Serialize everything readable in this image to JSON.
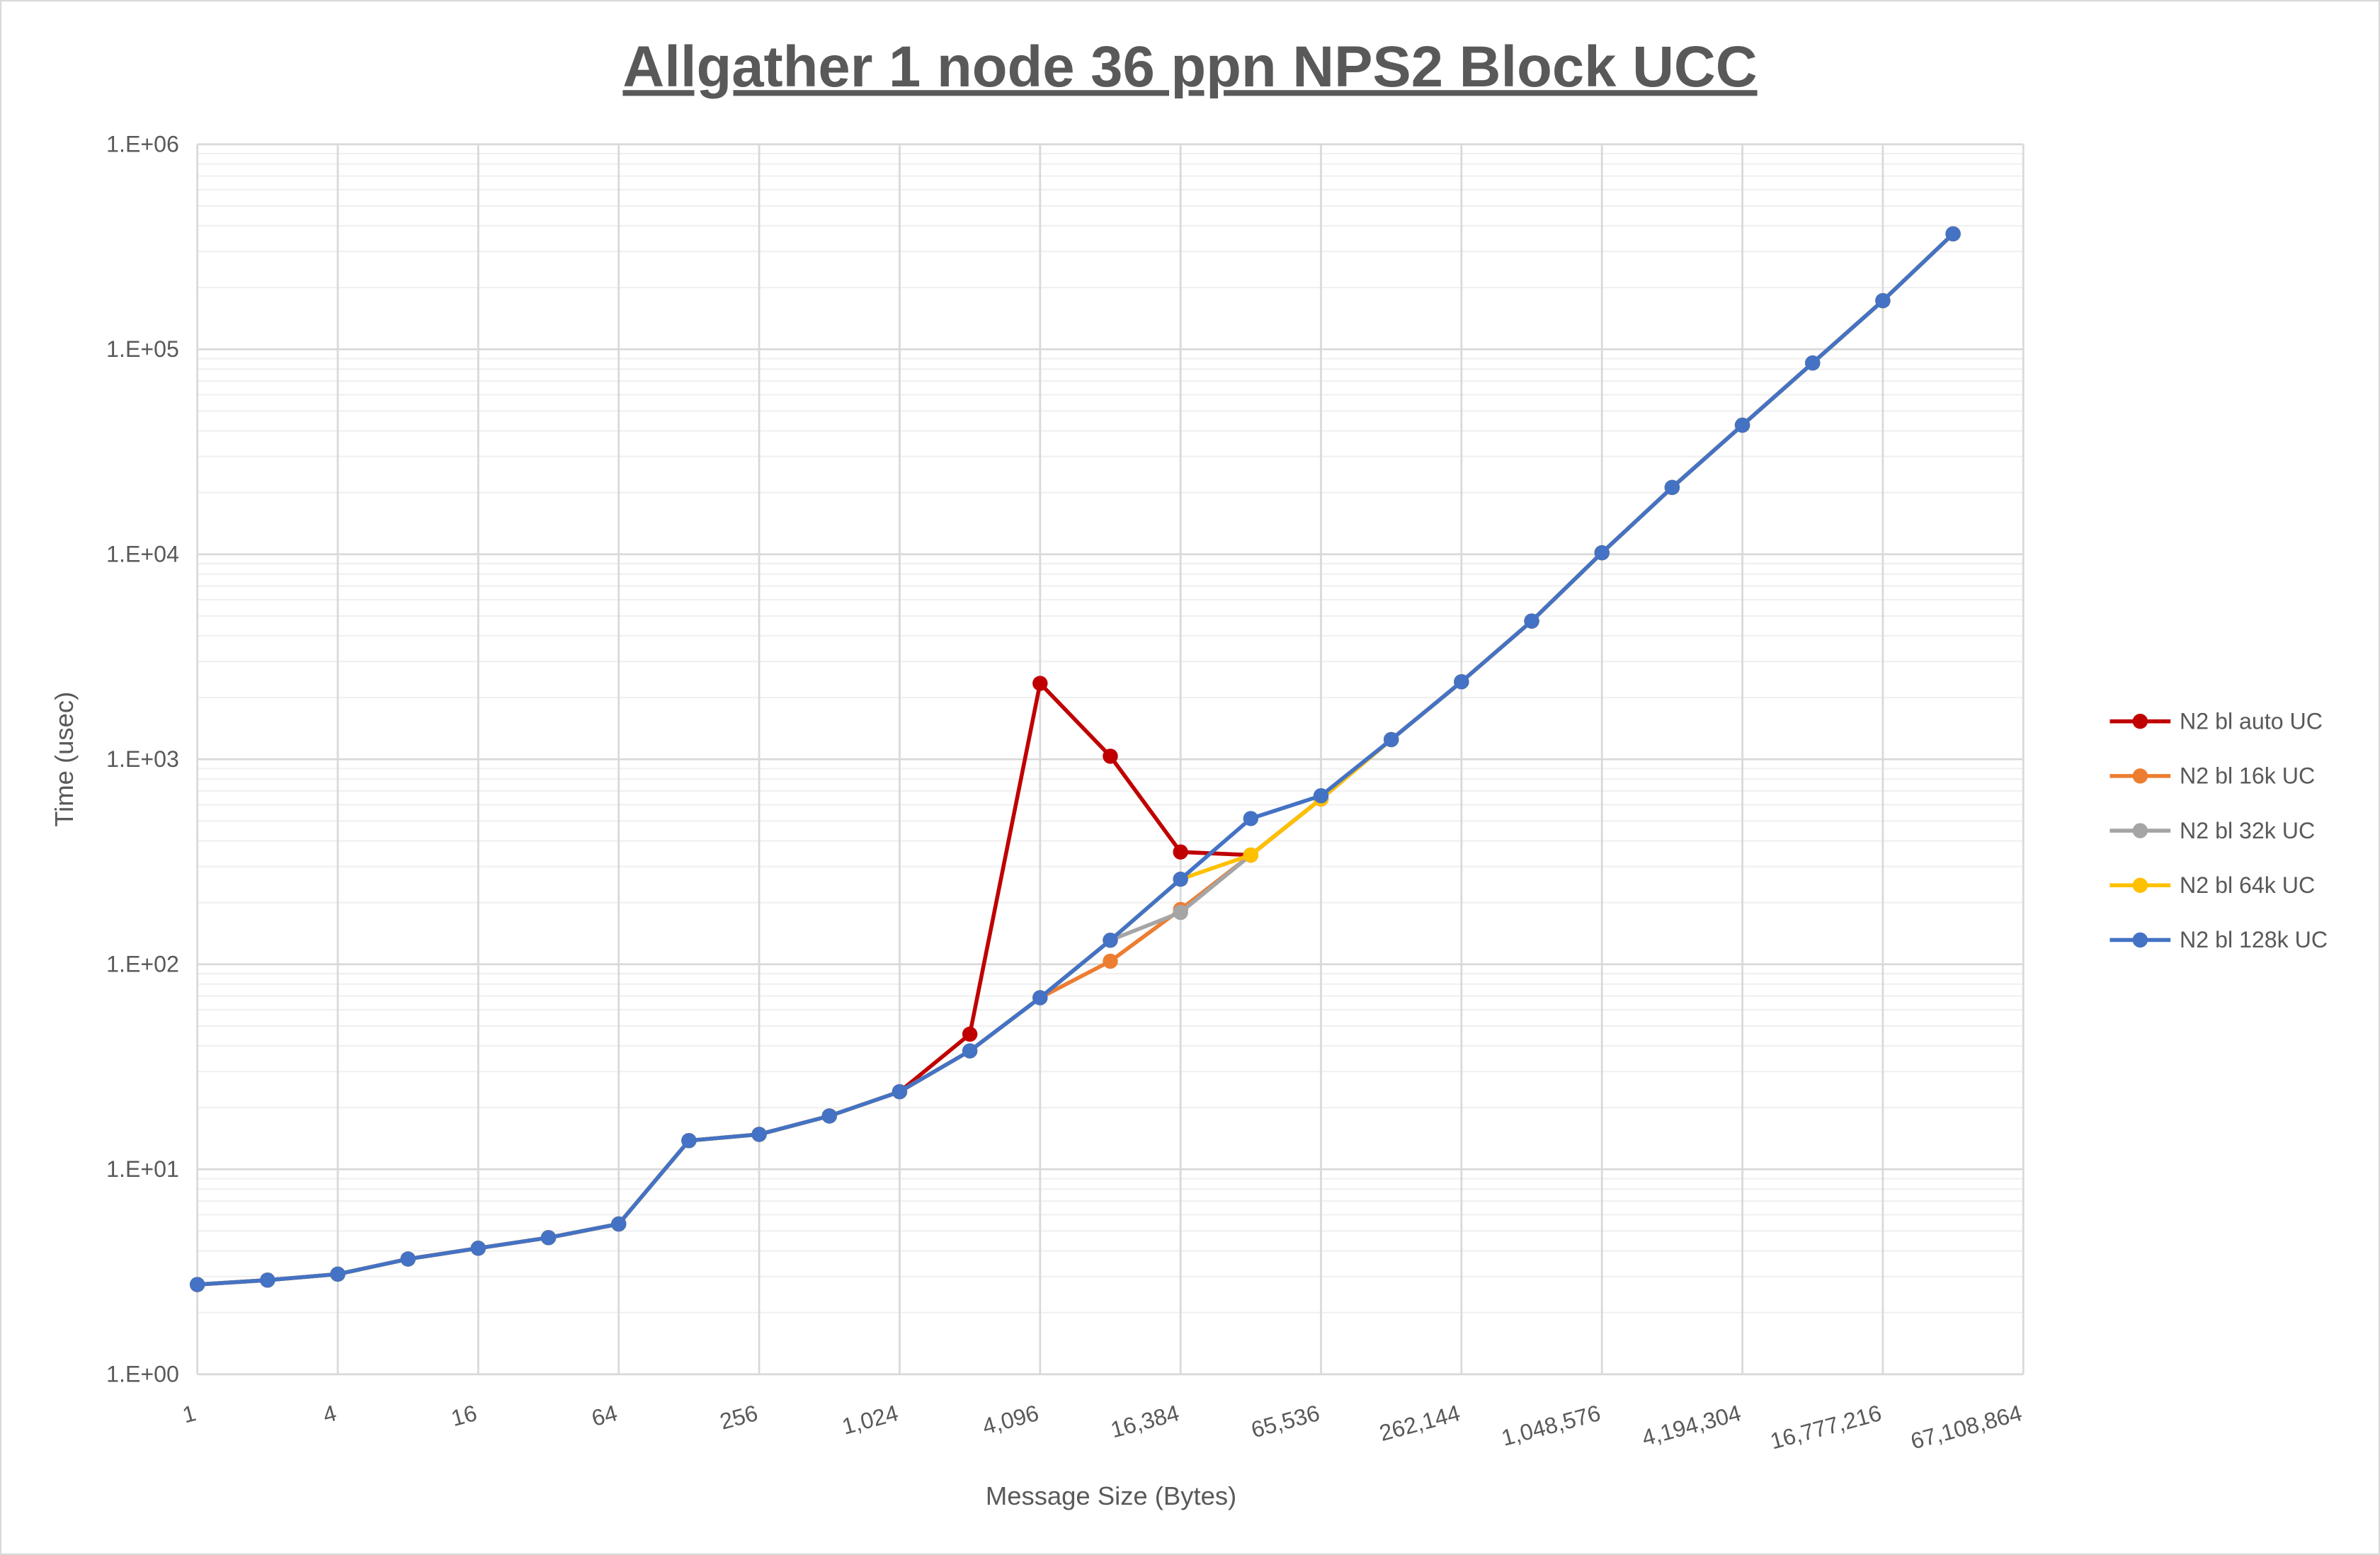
{
  "chart_data": {
    "type": "line",
    "title": "Allgather 1 node 36 ppn NPS2 Block UCC",
    "xlabel": "Message Size (Bytes)",
    "ylabel": "Time (usec)",
    "x_scale": "log2",
    "y_scale": "log10",
    "ylim": [
      1,
      1000000
    ],
    "grid": true,
    "legend": "right",
    "x_tick_labels": [
      "1",
      "4",
      "16",
      "64",
      "256",
      "1,024",
      "4,096",
      "16,384",
      "65,536",
      "262,144",
      "1,048,576",
      "4,194,304",
      "16,777,216",
      "67,108,864"
    ],
    "y_tick_labels": [
      "1.E+00",
      "1.E+01",
      "1.E+02",
      "1.E+03",
      "1.E+04",
      "1.E+05",
      "1.E+06"
    ],
    "x": [
      1,
      2,
      4,
      8,
      16,
      32,
      64,
      128,
      256,
      512,
      1024,
      2048,
      4096,
      8192,
      16384,
      32768,
      65536,
      131072,
      262144,
      524288,
      1048576,
      2097152,
      4194304,
      8388608,
      16777216,
      33554432
    ],
    "series": [
      {
        "name": "N2 bl auto UC",
        "color": "#C00000",
        "values": [
          2.74,
          2.88,
          3.08,
          3.65,
          4.12,
          4.64,
          5.41,
          13.8,
          14.8,
          18.2,
          23.9,
          45.6,
          2345,
          1035,
          353,
          341,
          641,
          1248,
          2388,
          4724,
          10170,
          21180,
          42640,
          85700,
          172600,
          365600
        ]
      },
      {
        "name": "N2 bl 16k UC",
        "color": "#ED7D31",
        "values": [
          2.74,
          2.88,
          3.08,
          3.65,
          4.12,
          4.64,
          5.41,
          13.8,
          14.8,
          18.2,
          23.9,
          37.8,
          68.7,
          103.5,
          185,
          341,
          641,
          1248,
          2388,
          4724,
          10170,
          21180,
          42640,
          85700,
          172600,
          365600
        ]
      },
      {
        "name": "N2 bl 32k UC",
        "color": "#A5A5A5",
        "values": [
          2.74,
          2.88,
          3.08,
          3.65,
          4.12,
          4.64,
          5.41,
          13.8,
          14.8,
          18.2,
          23.9,
          37.8,
          68.7,
          131,
          179,
          341,
          641,
          1248,
          2388,
          4724,
          10170,
          21180,
          42640,
          85700,
          172600,
          365600
        ]
      },
      {
        "name": "N2 bl 64k UC",
        "color": "#FFC000",
        "values": [
          2.74,
          2.88,
          3.08,
          3.65,
          4.12,
          4.64,
          5.41,
          13.8,
          14.8,
          18.2,
          23.9,
          37.8,
          68.7,
          131,
          260,
          341,
          641,
          1248,
          2388,
          4724,
          10170,
          21180,
          42640,
          85700,
          172600,
          365600
        ]
      },
      {
        "name": "N2 bl 128k UC",
        "color": "#4472C4",
        "values": [
          2.74,
          2.88,
          3.08,
          3.65,
          4.12,
          4.64,
          5.41,
          13.8,
          14.8,
          18.2,
          23.9,
          37.8,
          68.7,
          131,
          260,
          514,
          664,
          1248,
          2388,
          4724,
          10170,
          21180,
          42640,
          85700,
          172600,
          365600
        ]
      }
    ]
  }
}
